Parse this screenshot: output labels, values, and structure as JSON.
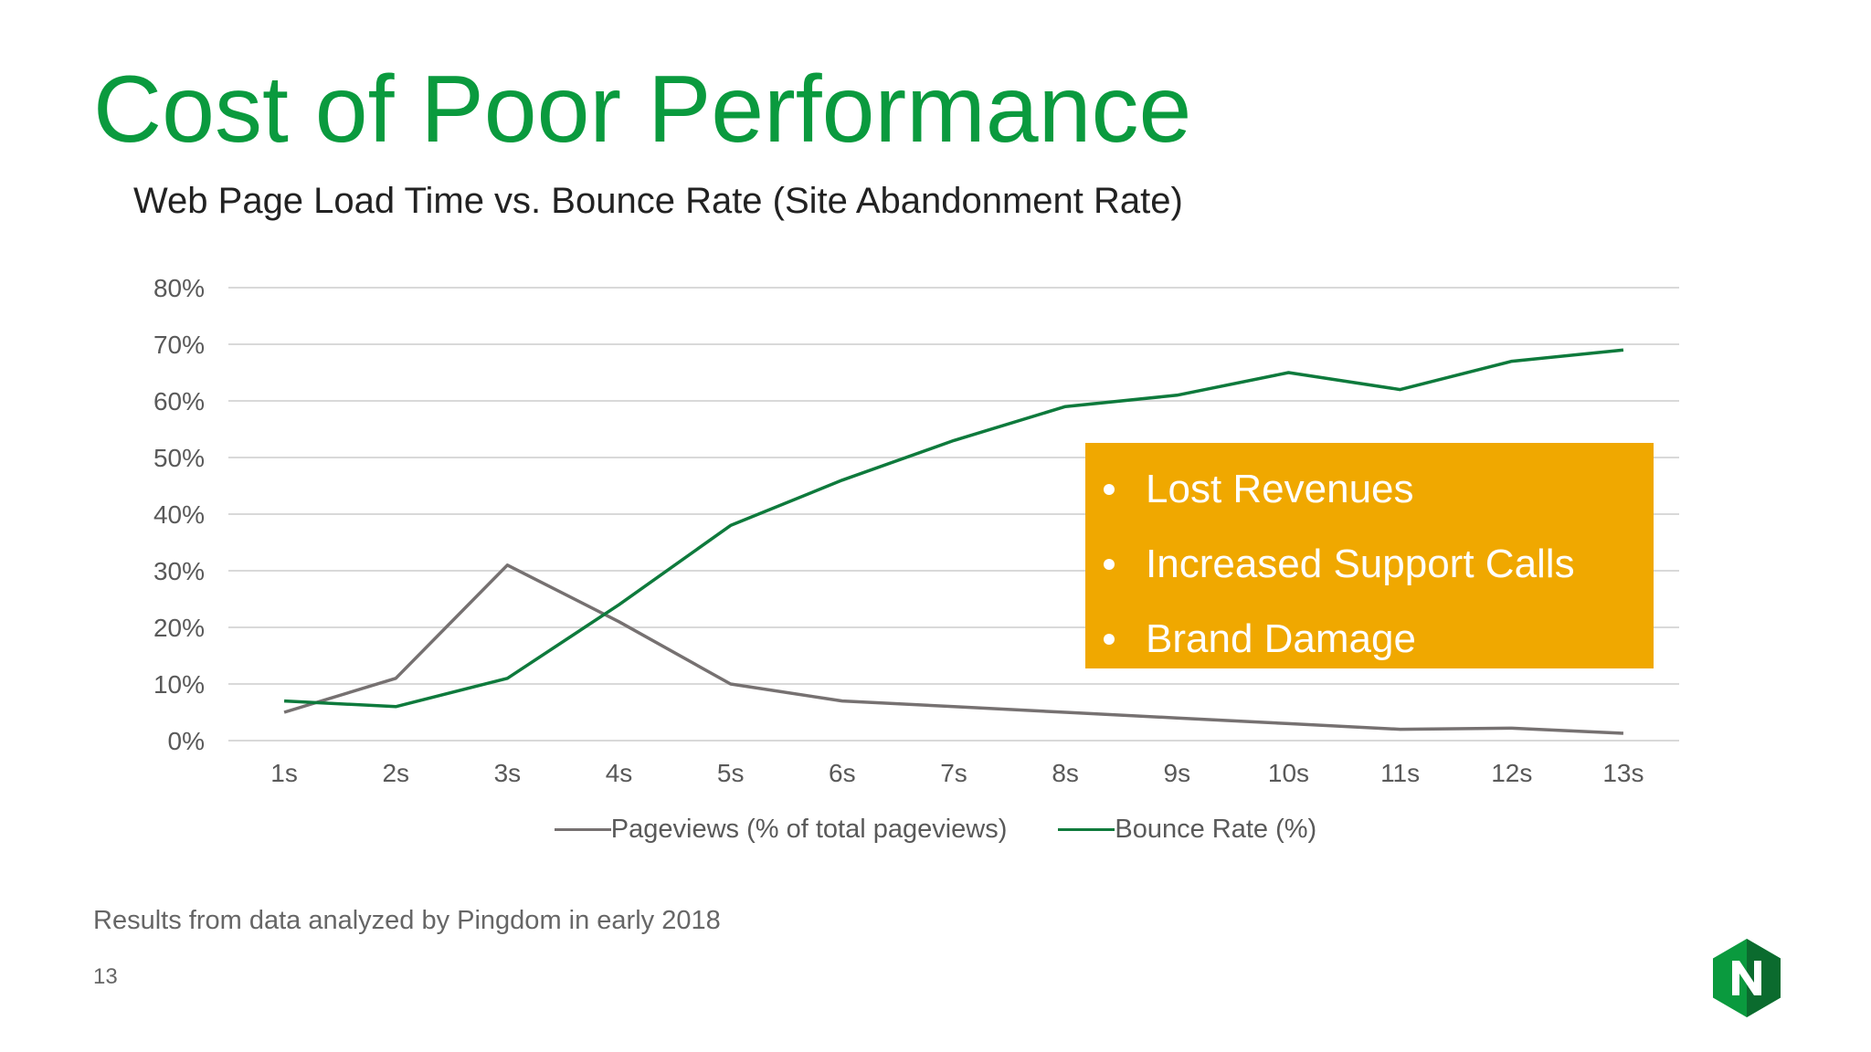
{
  "slide": {
    "title": "Cost of Poor Performance",
    "footnote": "Results from data analyzed by Pingdom in early 2018",
    "page_number": "13",
    "logo_letter": "N"
  },
  "colors": {
    "title": "#0a9a3e",
    "pageviews_line": "#767171",
    "bounce_line": "#0e7a3c",
    "callout_bg": "#f0a800",
    "logo_light": "#0a9a3e",
    "logo_dark": "#0b6b2e"
  },
  "callout": {
    "items": [
      "Lost Revenues",
      "Increased  Support Calls",
      "Brand Damage"
    ]
  },
  "chart_data": {
    "type": "line",
    "title": "Web Page Load Time vs. Bounce Rate (Site Abandonment Rate)",
    "categories": [
      "1s",
      "2s",
      "3s",
      "4s",
      "5s",
      "6s",
      "7s",
      "8s",
      "9s",
      "10s",
      "11s",
      "12s",
      "13s"
    ],
    "yticks": [
      "0%",
      "10%",
      "20%",
      "30%",
      "40%",
      "50%",
      "60%",
      "70%",
      "80%"
    ],
    "ylim": [
      0,
      80
    ],
    "grid": true,
    "legend_position": "bottom",
    "series": [
      {
        "name": "Pageviews (% of total pageviews)",
        "color": "#767171",
        "values": [
          5,
          11,
          31,
          21,
          10,
          7,
          6,
          5,
          4,
          3,
          2,
          2.2,
          1.3
        ]
      },
      {
        "name": "Bounce Rate (%)",
        "color": "#0e7a3c",
        "values": [
          7,
          6,
          11,
          24,
          38,
          46,
          53,
          59,
          61,
          65,
          62,
          67,
          69
        ]
      }
    ]
  }
}
